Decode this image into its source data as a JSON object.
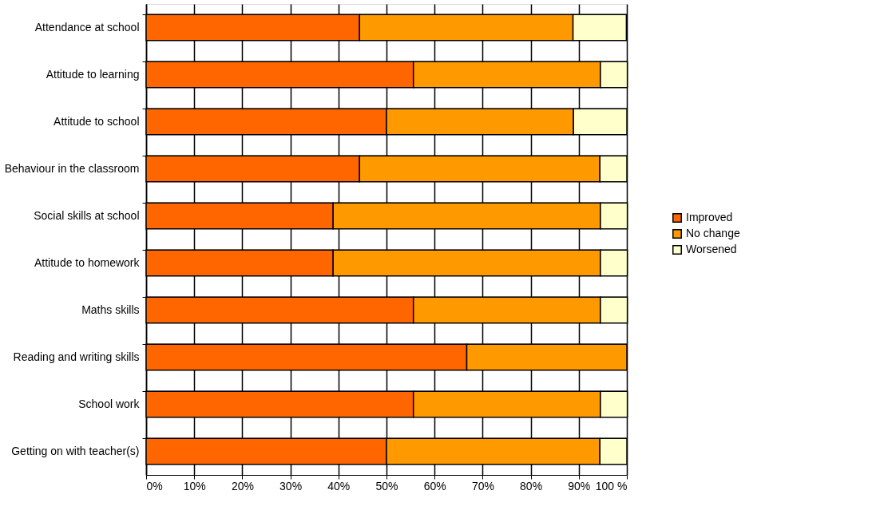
{
  "chart_data": {
    "type": "bar",
    "orientation": "horizontal",
    "stacked": true,
    "categories": [
      "Attendance at school",
      "Attitude to learning",
      "Attitude to school",
      "Behaviour in the classroom",
      "Social skills at school",
      "Attitude to homework",
      "Maths skills",
      "Reading and writing skills",
      "School work",
      "Getting on with teacher(s)"
    ],
    "series": [
      {
        "name": "Improved",
        "color": "#ff6600",
        "values": [
          44.4,
          55.6,
          50,
          44.4,
          38.9,
          38.9,
          55.6,
          66.7,
          55.6,
          50
        ]
      },
      {
        "name": "No change",
        "color": "#ff9900",
        "values": [
          44.4,
          38.9,
          38.9,
          50,
          55.6,
          55.6,
          38.9,
          33.3,
          38.9,
          44.4
        ]
      },
      {
        "name": "Worsened",
        "color": "#ffffcc",
        "values": [
          11.1,
          5.6,
          11.1,
          5.6,
          5.6,
          5.6,
          5.6,
          null,
          5.6,
          5.6
        ]
      }
    ],
    "xlim": [
      0,
      100
    ],
    "xticks": [
      {
        "value": 0,
        "label": "0%"
      },
      {
        "value": 10,
        "label": "10%"
      },
      {
        "value": 20,
        "label": "20%"
      },
      {
        "value": 30,
        "label": "30%"
      },
      {
        "value": 40,
        "label": "40%"
      },
      {
        "value": 50,
        "label": "50%"
      },
      {
        "value": 60,
        "label": "60%"
      },
      {
        "value": 70,
        "label": "70%"
      },
      {
        "value": 80,
        "label": "80%"
      },
      {
        "value": 90,
        "label": "90%"
      },
      {
        "value": 100,
        "label": "100 %"
      }
    ],
    "grid": true,
    "legend": "right"
  }
}
